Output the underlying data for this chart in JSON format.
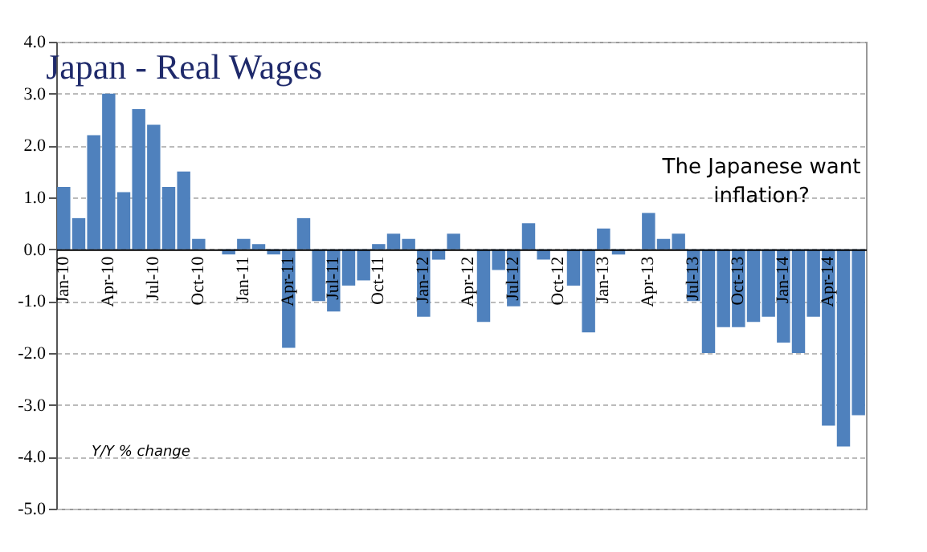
{
  "chart_data": {
    "type": "bar",
    "title": "Japan - Real Wages",
    "categories": [
      "Jan-10",
      null,
      null,
      "Apr-10",
      null,
      null,
      "Jul-10",
      null,
      null,
      "Oct-10",
      null,
      null,
      "Jan-11",
      null,
      null,
      "Apr-11",
      null,
      null,
      "Jul-11",
      null,
      null,
      "Oct-11",
      null,
      null,
      "Jan-12",
      null,
      null,
      "Apr-12",
      null,
      null,
      "Jul-12",
      null,
      null,
      "Oct-12",
      null,
      null,
      "Jan-13",
      null,
      null,
      "Apr-13",
      null,
      null,
      "Jul-13",
      null,
      null,
      "Oct-13",
      null,
      null,
      "Jan-14",
      null,
      null,
      "Apr-14",
      null,
      null
    ],
    "values": [
      1.2,
      0.6,
      2.2,
      3.0,
      1.1,
      2.7,
      2.4,
      1.2,
      1.5,
      0.2,
      0,
      -0.1,
      0.2,
      0.1,
      -0.1,
      -1.9,
      0.6,
      -1.0,
      -1.2,
      -0.7,
      -0.6,
      0.1,
      0.3,
      0.2,
      -1.3,
      -0.2,
      0.3,
      0,
      -1.4,
      -0.4,
      -1.1,
      0.5,
      -0.2,
      0,
      -0.7,
      -1.6,
      0.4,
      -0.1,
      0,
      0.7,
      0.2,
      0.3,
      -1.0,
      -2.0,
      -1.5,
      -1.5,
      -1.4,
      -1.3,
      -1.8,
      -2.0,
      -1.3,
      -3.4,
      -3.8,
      -3.2
    ],
    "color": "#4f81bd",
    "ylim": [
      -5,
      4
    ],
    "yticks": [
      {
        "value": -5,
        "label": "-5.0"
      },
      {
        "value": -4,
        "label": "-4.0"
      },
      {
        "value": -3,
        "label": "-3.0"
      },
      {
        "value": -2,
        "label": "-2.0"
      },
      {
        "value": -1,
        "label": "-1.0"
      },
      {
        "value": 0,
        "label": "0.0"
      },
      {
        "value": 1,
        "label": "1.0"
      },
      {
        "value": 2,
        "label": "2.0"
      },
      {
        "value": 3,
        "label": "3.0"
      },
      {
        "value": 4,
        "label": "4.0"
      }
    ],
    "grid": "y",
    "annotations": [
      "Y/Y % change",
      "The Japanese want\ninflation?"
    ]
  }
}
